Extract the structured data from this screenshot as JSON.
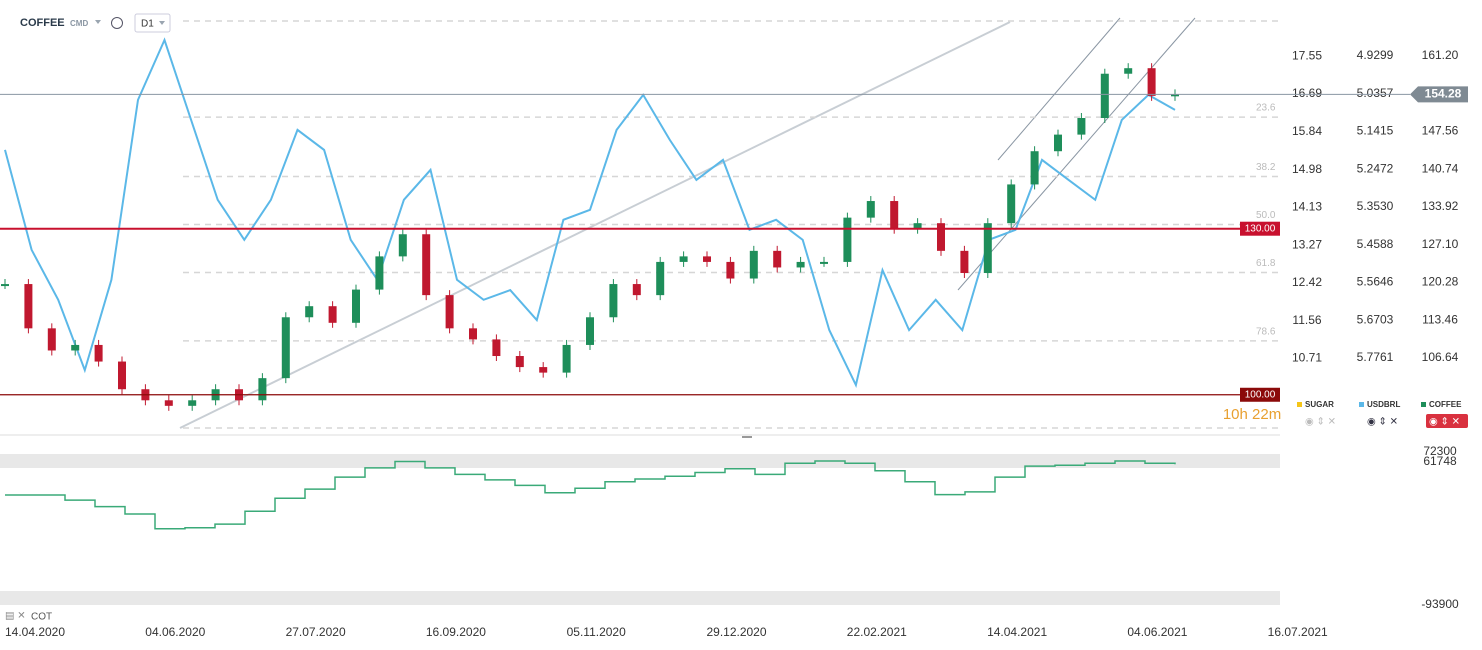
{
  "header": {
    "symbol": "COFFEE",
    "market": "CMD",
    "interval": "D1"
  },
  "chart_data": {
    "type": "candlestick",
    "ylim": [
      92.73,
      171.32
    ],
    "yticks": [
      {
        "value": 161.2,
        "label": "161.20"
      },
      147.56,
      140.74,
      133.92,
      {
        "value": 127.1,
        "label": "127.10"
      },
      120.28,
      113.46,
      106.64
    ],
    "xticks": [
      "14.04.2020",
      "04.06.2020",
      "27.07.2020",
      "16.09.2020",
      "05.11.2020",
      "29.12.2020",
      "22.02.2021",
      "14.04.2021",
      "04.06.2021",
      "16.07.2021"
    ],
    "series": [
      {
        "name": "SUGAR",
        "color": "#f5c518",
        "visible": false,
        "ylim": [
          8.97,
          18.82
        ],
        "yticks": [
          17.55,
          16.69,
          15.84,
          14.98,
          14.13,
          13.27,
          12.42,
          11.56,
          10.71
        ]
      },
      {
        "name": "USDBRL",
        "color": "#5bb8e8",
        "visible": true,
        "ylim": [
          5.992,
          4.773
        ],
        "yticks": [
          4.9299,
          5.0357,
          5.1415,
          5.2472,
          {
            "value": 5.353,
            "label": "5.3530"
          },
          5.4588,
          5.5646,
          5.6703,
          5.7761
        ],
        "values": [
          5.193,
          5.473,
          5.613,
          5.81,
          5.557,
          5.053,
          4.885,
          5.109,
          5.333,
          5.445,
          5.333,
          5.137,
          5.193,
          5.445,
          5.557,
          5.333,
          5.249,
          5.557,
          5.613,
          5.586,
          5.67,
          5.389,
          5.361,
          5.137,
          5.039,
          5.165,
          5.277,
          5.221,
          5.417,
          5.389,
          5.445,
          5.698,
          5.852,
          5.53,
          5.698,
          5.613,
          5.698,
          5.445,
          5.417,
          5.221,
          5.277,
          5.333,
          5.109,
          5.039,
          5.081
        ]
      },
      {
        "name": "COFFEE",
        "color": "#1e8e5a",
        "down_color": "#c0182f",
        "visible": true,
        "values": [
          120,
          112,
          108,
          109,
          106,
          101,
          99,
          98,
          99,
          101,
          99,
          103,
          114,
          116,
          113,
          119,
          125,
          129,
          118,
          112,
          110,
          107,
          105,
          104,
          109,
          114,
          120,
          118,
          124,
          125,
          124,
          121,
          126,
          123,
          124,
          124,
          132,
          135,
          130,
          131,
          126,
          122,
          131,
          138,
          144,
          147,
          150,
          158,
          159,
          154,
          154.28
        ]
      }
    ],
    "current_price": 154.28,
    "levels": [
      {
        "value": 130,
        "label": "130.00",
        "color": "#c8102e"
      },
      {
        "value": 100,
        "label": "100.00",
        "color": "#8b0a0a"
      }
    ],
    "fib": {
      "high": 167.52,
      "low": 94.0,
      "levels": [
        0,
        23.6,
        38.2,
        {
          "value": 50,
          "label": "50.0"
        },
        61.8,
        78.6,
        100
      ]
    },
    "countdown": "10h 22m",
    "indicator": {
      "name": "COT",
      "color": "#3aaa78",
      "ylim": [
        -99330,
        74470
      ],
      "yticks": [
        72300,
        61748,
        -93900
      ],
      "values": [
        25600,
        25600,
        20000,
        13000,
        5000,
        -11000,
        -10000,
        -6000,
        8000,
        22000,
        32000,
        45000,
        55000,
        62000,
        55000,
        48000,
        42000,
        36000,
        28000,
        33000,
        40000,
        43000,
        46000,
        50000,
        54000,
        48000,
        60000,
        62500,
        60000,
        52000,
        40000,
        26000,
        29000,
        45000,
        57000,
        58000,
        60000,
        62500,
        60000,
        59000
      ]
    }
  }
}
